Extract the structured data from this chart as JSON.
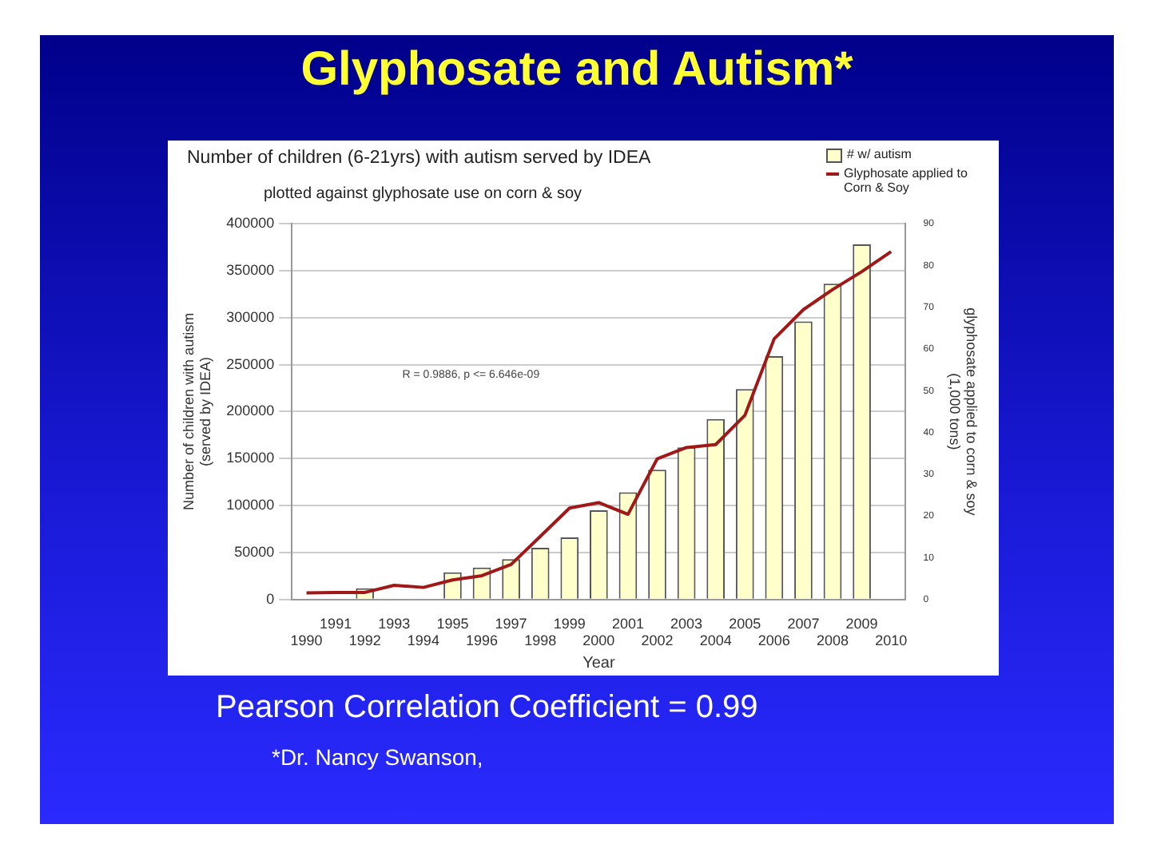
{
  "chart_data": {
    "type": "bar",
    "title": "Glyphosate and Autism*",
    "subtitle": "Number of children (6-21yrs) with autism served by IDEA",
    "xlabel": "Year",
    "ylabel": "Number of children with autism (served by IDEA)",
    "y2label": "glyphosate applied to corn & soy (1,000 tons)",
    "annotations": [
      "plotted against glyphosate use on corn & soy",
      "R = 0.9886, p <= 6.646e-09",
      "Pearson Correlation Coefficient = 0.99",
      "*Dr. Nancy Swanson,"
    ],
    "categories": [
      "1990",
      "1991",
      "1992",
      "1993",
      "1994",
      "1995",
      "1996",
      "1997",
      "1998",
      "1999",
      "2000",
      "2001",
      "2002",
      "2003",
      "2004",
      "2005",
      "2006",
      "2007",
      "2008",
      "2009",
      "2010"
    ],
    "series": [
      {
        "name": "# w/ autism",
        "color": "#ffffcc",
        "values": [
          null,
          null,
          12000,
          null,
          null,
          29000,
          34000,
          43000,
          55000,
          66000,
          95000,
          114000,
          138000,
          162000,
          192000,
          224000,
          259000,
          296000,
          336000,
          378000,
          null
        ]
      },
      {
        "name": "Glyphosate applied to Corn & Soy",
        "type": "line",
        "axis": "y2",
        "color": "#a01818",
        "values": [
          1.6,
          1.7,
          1.7,
          3.4,
          2.9,
          4.7,
          5.7,
          8.4,
          15.1,
          21.9,
          23.2,
          20.4,
          33.7,
          36.4,
          37.1,
          44.1,
          62.4,
          69.4,
          74.2,
          78.5,
          83.3
        ]
      }
    ],
    "ylim": [
      0,
      400000
    ],
    "yticks": [
      0,
      50000,
      100000,
      150000,
      200000,
      250000,
      300000,
      350000,
      400000
    ],
    "y2lim": [
      0,
      90
    ],
    "y2ticks": [
      0,
      10,
      20,
      30,
      40,
      50,
      60,
      70,
      80,
      90
    ],
    "grid": "y",
    "legend": "top right",
    "marker": "none",
    "line_style": "solid"
  }
}
